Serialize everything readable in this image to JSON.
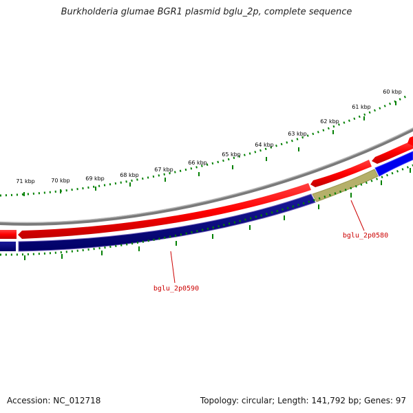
{
  "title": "Burkholderia glumae BGR1 plasmid bglu_2p, complete sequence",
  "footer": {
    "accession": "Accession: NC_012718",
    "summary": "Topology: circular; Length: 141,792 bp; Genes: 97"
  },
  "scale_labels": [
    "60 kbp",
    "61 kbp",
    "62 kbp",
    "63 kbp",
    "64 kbp",
    "65 kbp",
    "66 kbp",
    "67 kbp",
    "68 kbp",
    "69 kbp",
    "70 kbp",
    "71 kbp"
  ],
  "gene_labels": [
    {
      "text": "bglu_2p0580"
    },
    {
      "text": "bglu_2p0590"
    }
  ],
  "colors": {
    "forward_cds": "#ff0000",
    "reverse_cds": "#000080",
    "reverse_cds_alt": "#0000ff",
    "highlight_cds": "#b5b06a",
    "backbone": "#808080",
    "ticks": "#008000",
    "label": "#cc0000"
  }
}
